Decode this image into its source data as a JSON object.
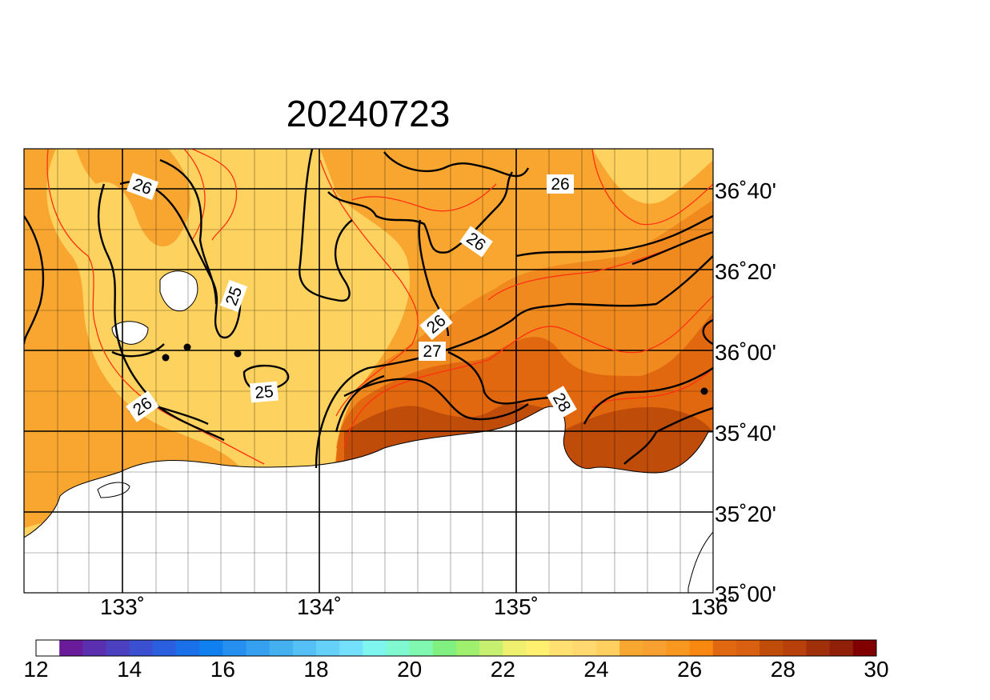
{
  "map": {
    "title": "20240723",
    "lon_labels": [
      "133˚",
      "134˚",
      "135˚",
      "136˚"
    ],
    "lat_labels": [
      "36˚40'",
      "36˚20'",
      "36˚00'",
      "35˚40'",
      "35˚20'",
      "35˚00'"
    ],
    "contour_labels": [
      "26",
      "26",
      "26",
      "25",
      "26",
      "27",
      "25",
      "26",
      "28"
    ]
  },
  "colorbar": {
    "tick_labels": [
      "12",
      "14",
      "16",
      "18",
      "20",
      "22",
      "24",
      "26",
      "28",
      "30"
    ],
    "colors": [
      "#ffffff",
      "#6a1b9a",
      "#5a30b0",
      "#4a40c0",
      "#3a50d0",
      "#2a60e0",
      "#1a70e8",
      "#1080f0",
      "#2590f0",
      "#35a0f0",
      "#45b0f0",
      "#55c0f5",
      "#65d0f8",
      "#75e0fb",
      "#7ff5f0",
      "#80f8d0",
      "#80f8b0",
      "#80f080",
      "#a0f070",
      "#c8f070",
      "#f0f070",
      "#fff070",
      "#ffe070",
      "#ffd870",
      "#ffd060",
      "#f8a830",
      "#f8a030",
      "#f89820",
      "#f88810",
      "#e06810",
      "#d86010",
      "#c04c0a",
      "#b8400a",
      "#a0300a",
      "#902008",
      "#800000"
    ]
  },
  "colors": {
    "sst_25_26": "#fdd25e",
    "sst_26_27": "#f8a630",
    "sst_27_28": "#f08a1e",
    "sst_28_29": "#e26810",
    "sst_29_30": "#c04c0a",
    "isotherm_half": "#ff3010",
    "isotherm_int": "#000000",
    "land": "#ffffff"
  }
}
